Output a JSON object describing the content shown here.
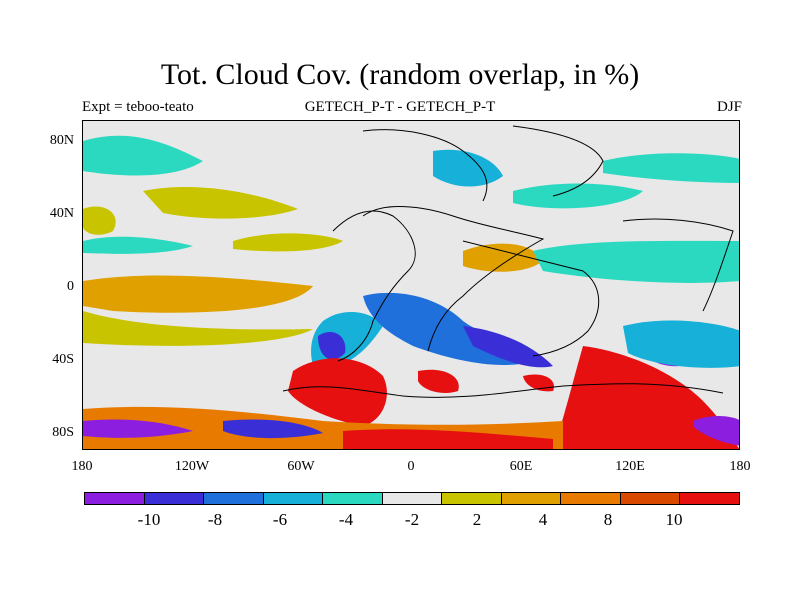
{
  "title": "Tot. Cloud Cov. (random overlap, in %)",
  "subtitle_left": "Expt = teboo-teato",
  "subtitle_center": "GETECH_P-T - GETECH_P-T",
  "subtitle_right": "DJF",
  "y_ticks": [
    "80N",
    "40N",
    "0",
    "40S",
    "80S"
  ],
  "x_ticks": [
    "180",
    "120W",
    "60W",
    "0",
    "60E",
    "120E",
    "180"
  ],
  "colorbar": {
    "colors": [
      "#8c1ee0",
      "#3a2fd6",
      "#1f70db",
      "#16b0d8",
      "#2ad9c0",
      "#e8e8e8",
      "#c9c400",
      "#e0a000",
      "#e87a00",
      "#d94a00",
      "#e61010"
    ],
    "labels": [
      "-10",
      "-8",
      "-6",
      "-4",
      "-2",
      "2",
      "4",
      "8",
      "10"
    ]
  }
}
